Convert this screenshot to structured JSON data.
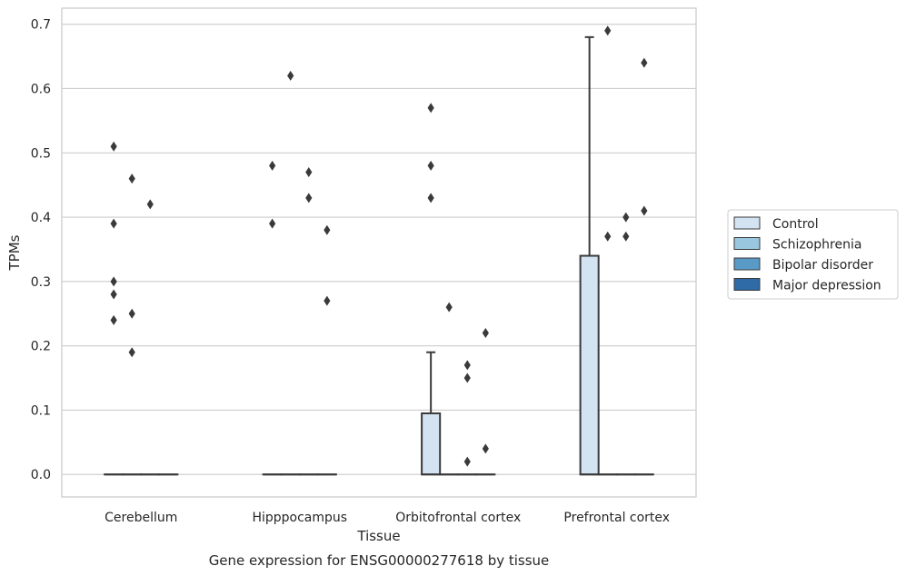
{
  "chart_data": {
    "type": "box",
    "xlabel": "Tissue",
    "ylabel": "TPMs",
    "caption": "Gene expression for ENSG00000277618 by tissue",
    "ylim": [
      -0.035,
      0.725
    ],
    "yticks": [
      "0.0",
      "0.1",
      "0.2",
      "0.3",
      "0.4",
      "0.5",
      "0.6",
      "0.7"
    ],
    "ytick_values": [
      0,
      0.1,
      0.2,
      0.3,
      0.4,
      0.5,
      0.6,
      0.7
    ],
    "grid": true,
    "legend_position": "right",
    "categories": [
      "Cerebellum",
      "Hipppocampus",
      "Orbitofrontal cortex",
      "Prefrontal cortex"
    ],
    "series": [
      {
        "name": "Control",
        "color": "#d3e3f2",
        "boxes": [
          {
            "q1": 0,
            "median": 0,
            "q3": 0,
            "whislo": 0,
            "whishi": 0,
            "fliers": [
              0.51,
              0.39,
              0.3,
              0.28,
              0.24
            ]
          },
          {
            "q1": 0,
            "median": 0,
            "q3": 0,
            "whislo": 0,
            "whishi": 0,
            "fliers": [
              0.48,
              0.39
            ]
          },
          {
            "q1": 0,
            "median": 0,
            "q3": 0.095,
            "whislo": 0,
            "whishi": 0.19,
            "fliers": [
              0.57,
              0.48,
              0.43
            ]
          },
          {
            "q1": 0,
            "median": 0,
            "q3": 0.34,
            "whislo": 0,
            "whishi": 0.68,
            "fliers": []
          }
        ]
      },
      {
        "name": "Schizophrenia",
        "color": "#9ac7e0",
        "boxes": [
          {
            "q1": 0,
            "median": 0,
            "q3": 0,
            "whislo": 0,
            "whishi": 0,
            "fliers": [
              0.46,
              0.25,
              0.19
            ]
          },
          {
            "q1": 0,
            "median": 0,
            "q3": 0,
            "whislo": 0,
            "whishi": 0,
            "fliers": [
              0.62
            ]
          },
          {
            "q1": 0,
            "median": 0,
            "q3": 0,
            "whislo": 0,
            "whishi": 0,
            "fliers": [
              0.26
            ]
          },
          {
            "q1": 0,
            "median": 0,
            "q3": 0,
            "whislo": 0,
            "whishi": 0,
            "fliers": [
              0.69,
              0.37
            ]
          }
        ]
      },
      {
        "name": "Bipolar disorder",
        "color": "#5a9ac7",
        "boxes": [
          {
            "q1": 0,
            "median": 0,
            "q3": 0,
            "whislo": 0,
            "whishi": 0,
            "fliers": [
              0.42
            ]
          },
          {
            "q1": 0,
            "median": 0,
            "q3": 0,
            "whislo": 0,
            "whishi": 0,
            "fliers": [
              0.47,
              0.43
            ]
          },
          {
            "q1": 0,
            "median": 0,
            "q3": 0,
            "whislo": 0,
            "whishi": 0,
            "fliers": [
              0.17,
              0.15,
              0.02
            ]
          },
          {
            "q1": 0,
            "median": 0,
            "q3": 0,
            "whislo": 0,
            "whishi": 0,
            "fliers": [
              0.4,
              0.37
            ]
          }
        ]
      },
      {
        "name": "Major depression",
        "color": "#2e6ba7",
        "boxes": [
          {
            "q1": 0,
            "median": 0,
            "q3": 0,
            "whislo": 0,
            "whishi": 0,
            "fliers": []
          },
          {
            "q1": 0,
            "median": 0,
            "q3": 0,
            "whislo": 0,
            "whishi": 0,
            "fliers": [
              0.38,
              0.27
            ]
          },
          {
            "q1": 0,
            "median": 0,
            "q3": 0,
            "whislo": 0,
            "whishi": 0,
            "fliers": [
              0.22,
              0.04
            ]
          },
          {
            "q1": 0,
            "median": 0,
            "q3": 0,
            "whislo": 0,
            "whishi": 0,
            "fliers": [
              0.64,
              0.41
            ]
          }
        ]
      }
    ],
    "colors": {
      "grid": "#cccccc",
      "frame": "#cccccc",
      "edge": "#3a3a3a",
      "flier": "#3a3a3a"
    }
  }
}
